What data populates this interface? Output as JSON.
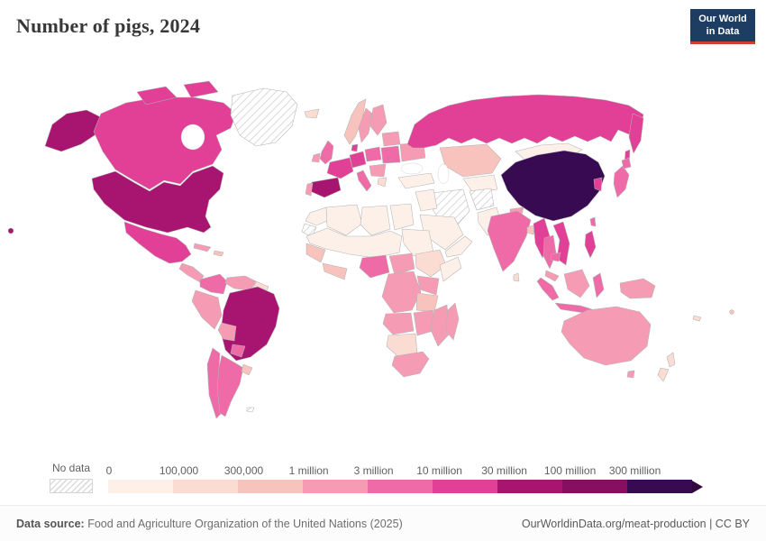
{
  "header": {
    "title": "Number of pigs, 2024"
  },
  "logo": {
    "line1": "Our World",
    "line2": "in Data",
    "bg": "#1d3d63",
    "accent": "#cf3d34"
  },
  "legend": {
    "no_data_label": "No data",
    "tick_labels": [
      "0",
      "100,000",
      "300,000",
      "1 million",
      "3 million",
      "10 million",
      "30 million",
      "100 million",
      "300 million"
    ],
    "bin_colors": [
      "#fdf0e9",
      "#fadcd3",
      "#f8c3bd",
      "#f59cb4",
      "#ef6ba8",
      "#e23f96",
      "#a81570",
      "#870f62",
      "#380a52"
    ],
    "arrow_color": "#33073f"
  },
  "map": {
    "ocean_color": "#ffffff",
    "border_color": "#b3b3b3",
    "no_data_pattern": "diagonal-hatch",
    "regions": {
      "usa": 6,
      "canada": 5,
      "greenland": -1,
      "mexico": 5,
      "central-america": 3,
      "cuba": 3,
      "hispaniola": 2,
      "colombia": 4,
      "venezuela": 3,
      "guyanas": 1,
      "brazil": 6,
      "peru": 3,
      "bolivia": 3,
      "paraguay": 4,
      "chile": 4,
      "argentina": 4,
      "uruguay": 2,
      "falkland-islands": -1,
      "iceland": 1,
      "norway": 2,
      "sweden": 3,
      "finland": 3,
      "united-kingdom": 4,
      "ireland": 3,
      "denmark": 5,
      "germany": 5,
      "france": 5,
      "spain": 6,
      "portugal": 3,
      "italy": 4,
      "poland": 4,
      "east-europe": 4,
      "balkans": 3,
      "greece": 1,
      "ukraine": 3,
      "belarus-baltics": 3,
      "turkey": 0,
      "russia": 5,
      "kazakhstan": 2,
      "central-asia": 0,
      "iran": -1,
      "afghanistan": -1,
      "pakistan": 0,
      "iraq-syria": 0,
      "saudi-arabia": 0,
      "yemen-oman": 0,
      "morocco": 0,
      "western-sahara": -1,
      "algeria": 0,
      "libya": 0,
      "egypt": 0,
      "sahel": 0,
      "sudan": 0,
      "senegal-guinea": 2,
      "ivory-ghana": 2,
      "nigeria": 4,
      "cameroon-car": 3,
      "ethiopia": 1,
      "somalia": 0,
      "east-africa": 3,
      "dr-congo": 3,
      "tanzania": 2,
      "angola": 3,
      "zambia-zimbabwe": 3,
      "mozambique": 3,
      "namibia-botswana": 1,
      "south-africa": 3,
      "madagascar": 3,
      "mongolia": 0,
      "china": 8,
      "south-korea": 5,
      "japan": 4,
      "taiwan": 4,
      "india": 4,
      "sri-lanka": 1,
      "nepal": 3,
      "bangladesh": 2,
      "myanmar": 5,
      "thailand": 4,
      "vietnam": 5,
      "cambodia": 4,
      "malaysia": 3,
      "philippines": 5,
      "indonesia": 4,
      "borneo": 3,
      "papua-new-guinea": 3,
      "fiji": 2,
      "new-caledonia": 1,
      "australia": 3,
      "new-zealand": 1
    }
  },
  "footer": {
    "source_label": "Data source:",
    "source_text": "Food and Agriculture Organization of the United Nations (2025)",
    "right_text": "OurWorldinData.org/meat-production | CC BY"
  }
}
